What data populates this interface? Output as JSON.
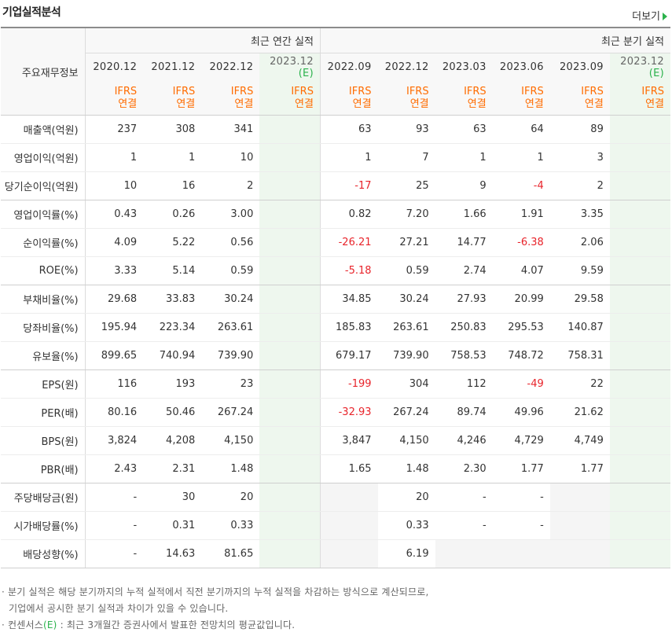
{
  "header": {
    "title": "기업실적분석",
    "more_label": "더보기"
  },
  "table": {
    "row_header_label": "주요재무정보",
    "annual_group_label": "최근 연간 실적",
    "quarter_group_label": "최근 분기 실적",
    "annual_periods": [
      "2020.12",
      "2021.12",
      "2022.12"
    ],
    "annual_estimate": {
      "period": "2023.12",
      "mark": "(E)"
    },
    "quarter_periods": [
      "2022.09",
      "2022.12",
      "2023.03",
      "2023.06",
      "2023.09"
    ],
    "quarter_estimate": {
      "period": "2023.12",
      "mark": "(E)"
    },
    "ifrs_label": [
      "IFRS",
      "연결"
    ],
    "rows": [
      {
        "label": "매출액(억원)",
        "annual": [
          "237",
          "308",
          "341"
        ],
        "quarter": [
          "63",
          "93",
          "63",
          "64",
          "89"
        ]
      },
      {
        "label": "영업이익(억원)",
        "annual": [
          "1",
          "1",
          "10"
        ],
        "quarter": [
          "1",
          "7",
          "1",
          "1",
          "3"
        ]
      },
      {
        "label": "당기순이익(억원)",
        "annual": [
          "10",
          "16",
          "2"
        ],
        "quarter": [
          "-17",
          "25",
          "9",
          "-4",
          "2"
        ]
      },
      {
        "label": "영업이익률(%)",
        "annual": [
          "0.43",
          "0.26",
          "3.00"
        ],
        "quarter": [
          "0.82",
          "7.20",
          "1.66",
          "1.91",
          "3.35"
        ]
      },
      {
        "label": "순이익률(%)",
        "annual": [
          "4.09",
          "5.22",
          "0.56"
        ],
        "quarter": [
          "-26.21",
          "27.21",
          "14.77",
          "-6.38",
          "2.06"
        ]
      },
      {
        "label": "ROE(%)",
        "annual": [
          "3.33",
          "5.14",
          "0.59"
        ],
        "quarter": [
          "-5.18",
          "0.59",
          "2.74",
          "4.07",
          "9.59"
        ]
      },
      {
        "label": "부채비율(%)",
        "annual": [
          "29.68",
          "33.83",
          "30.24"
        ],
        "quarter": [
          "34.85",
          "30.24",
          "27.93",
          "20.99",
          "29.58"
        ]
      },
      {
        "label": "당좌비율(%)",
        "annual": [
          "195.94",
          "223.34",
          "263.61"
        ],
        "quarter": [
          "185.83",
          "263.61",
          "250.83",
          "295.53",
          "140.87"
        ]
      },
      {
        "label": "유보율(%)",
        "annual": [
          "899.65",
          "740.94",
          "739.90"
        ],
        "quarter": [
          "679.17",
          "739.90",
          "758.53",
          "748.72",
          "758.31"
        ]
      },
      {
        "label": "EPS(원)",
        "annual": [
          "116",
          "193",
          "23"
        ],
        "quarter": [
          "-199",
          "304",
          "112",
          "-49",
          "22"
        ]
      },
      {
        "label": "PER(배)",
        "annual": [
          "80.16",
          "50.46",
          "267.24"
        ],
        "quarter": [
          "-32.93",
          "267.24",
          "89.74",
          "49.96",
          "21.62"
        ]
      },
      {
        "label": "BPS(원)",
        "annual": [
          "3,824",
          "4,208",
          "4,150"
        ],
        "quarter": [
          "3,847",
          "4,150",
          "4,246",
          "4,729",
          "4,749"
        ]
      },
      {
        "label": "PBR(배)",
        "annual": [
          "2.43",
          "2.31",
          "1.48"
        ],
        "quarter": [
          "1.65",
          "1.48",
          "2.30",
          "1.77",
          "1.77"
        ]
      },
      {
        "label": "주당배당금(원)",
        "annual": [
          "-",
          "30",
          "20"
        ],
        "quarter": [
          "",
          "20",
          "-",
          "-",
          ""
        ]
      },
      {
        "label": "시가배당률(%)",
        "annual": [
          "-",
          "0.31",
          "0.33"
        ],
        "quarter": [
          "",
          "0.33",
          "-",
          "-",
          ""
        ]
      },
      {
        "label": "배당성향(%)",
        "annual": [
          "-",
          "14.63",
          "81.65"
        ],
        "quarter": [
          "",
          "6.19",
          "",
          "",
          ""
        ]
      }
    ]
  },
  "notes": {
    "line1": "분기 실적은 해당 분기까지의 누적 실적에서 직전 분기까지의 누적 실적을 차감하는 방식으로 계산되므로,",
    "line2": "기업에서 공시한 분기 실적과 차이가 있을 수 있습니다.",
    "line3_prefix": "컨센서스",
    "line3_mark": "(E)",
    "line3_suffix": ": 최근 3개월간 증권사에서 발표한 전망치의 평균값입니다."
  },
  "colors": {
    "negative": "#e8242b",
    "ifrs": "#ff6c00",
    "estimate_bg": "#eef7ee",
    "accent": "#2bb24c"
  }
}
